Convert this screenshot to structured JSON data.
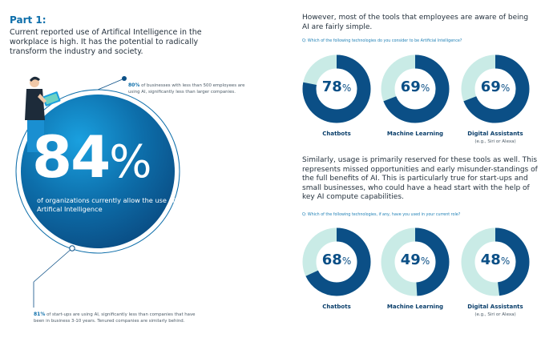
{
  "left": {
    "title": "Part 1:",
    "intro": "Current reported use of Artifical Intelligence in the workplace is high. It has the potential to radically transform the industry and society.",
    "big_value": "84",
    "big_unit": "%",
    "big_caption": "of organizations currently allow the use of Artifical Intelligence",
    "note_80_bold": "80%",
    "note_80_text": " of businesses with less than 500 employees are using AI, significantly less than larger companies.",
    "note_81_bold": "81%",
    "note_81_text": " of start-ups are using AI, significantly less than companies that have been in business 3-10 years. Tenured companies are similarly behind."
  },
  "right": {
    "intro1": "However, most of the tools that employees are aware of being AI are fairly simple.",
    "question1": "Q: Which of the following technologies do you consider to be Artificial Intelligence?",
    "intro2": "Similarly, usage is primarily reserved for these tools as well. This represents missed opportunities and early misunder-standings of the full benefits of AI. This is particularly true for start-ups and small businesses, who could have a head start with the help of key AI compute capabilities.",
    "question2": "Q: Which of the following technologies, if any, have you used in your current role?"
  },
  "colors": {
    "primary": "#0b4f86",
    "light": "#c9ebe6",
    "accent": "#0d6eaa"
  },
  "chart_data": [
    {
      "type": "pie",
      "categories": [
        "Chatbots",
        "Machine Learning",
        "Digital Assistants"
      ],
      "values": [
        78,
        69,
        69
      ],
      "value_labels": [
        "78",
        "69",
        "69"
      ],
      "unit": "%",
      "sublabels": [
        "",
        "",
        "(e.g., Siri or Alexa)"
      ]
    },
    {
      "type": "pie",
      "categories": [
        "Chatbots",
        "Machine Learning",
        "Digital Assistants"
      ],
      "values": [
        68,
        49,
        48
      ],
      "value_labels": [
        "68",
        "49",
        "48"
      ],
      "unit": "%",
      "sublabels": [
        "",
        "",
        "(e.g., Siri or Alexa)"
      ]
    }
  ]
}
